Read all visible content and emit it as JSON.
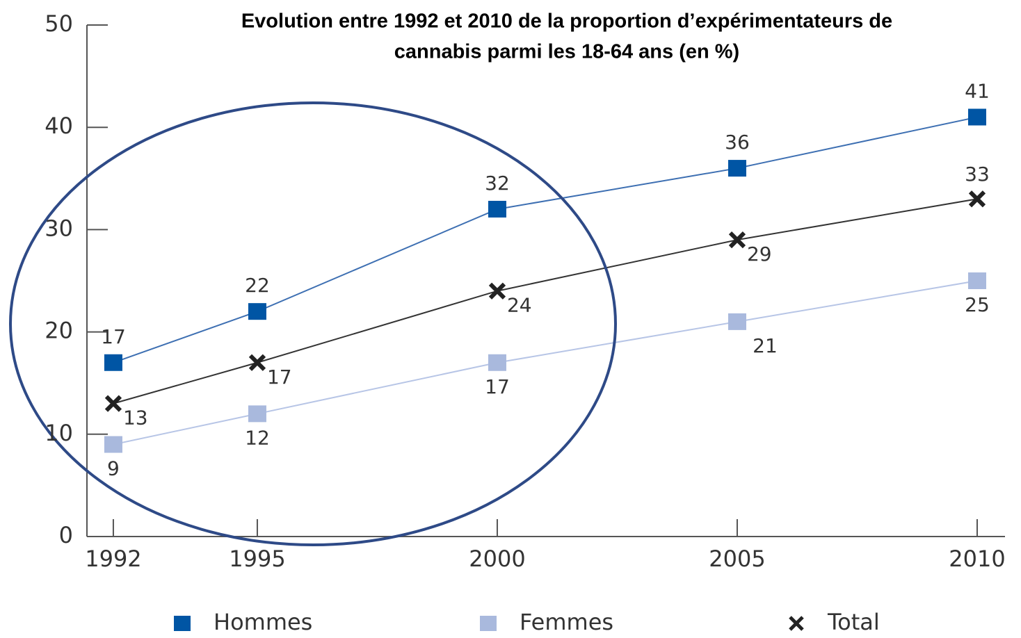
{
  "chart_data": {
    "type": "line",
    "title": [
      "Evolution entre 1992 et 2010 de la proportion d’expérimentateurs de",
      "cannabis parmi les 18-64 ans (en %)"
    ],
    "x": [
      1992,
      1995,
      2000,
      2005,
      2010
    ],
    "series": [
      {
        "name": "Hommes",
        "color": "#0055a4",
        "line_color": "#3d6fb2",
        "marker": "square",
        "values": [
          17,
          22,
          32,
          36,
          41
        ]
      },
      {
        "name": "Femmes",
        "color": "#a9b9dd",
        "line_color": "#b7c5e6",
        "marker": "square",
        "values": [
          9,
          12,
          17,
          21,
          25
        ]
      },
      {
        "name": "Total",
        "color": "#222222",
        "line_color": "#333333",
        "marker": "x",
        "values": [
          13,
          17,
          24,
          29,
          33
        ]
      }
    ],
    "xlim": [
      1991.45,
      2010.58
    ],
    "xticks": [
      1992,
      1995,
      2000,
      2005,
      2010
    ],
    "ylim": [
      0,
      50
    ],
    "yticks": [
      0,
      10,
      20,
      30,
      40,
      50
    ],
    "legend": "bottom"
  }
}
